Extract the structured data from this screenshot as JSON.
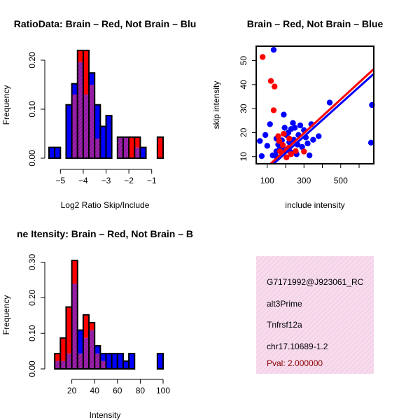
{
  "chart_data": [
    {
      "type": "bar",
      "subtype": "overlaid-histogram",
      "title": "RatioData: Brain – Red, Not Brain – Blu",
      "xlabel": "Log2 Ratio Skip/Include",
      "ylabel": "Frequency",
      "xlim": [
        -5.5,
        -0.5
      ],
      "ylim": [
        0,
        0.22
      ],
      "x_ticks": [
        -5,
        -4,
        -3,
        -2,
        -1
      ],
      "x_tick_labels": [
        "−5",
        "−4",
        "−3",
        "−2",
        "−1"
      ],
      "y_ticks": [
        0.0,
        0.1,
        0.2
      ],
      "y_tick_labels": [
        "0.00",
        "0.10",
        "0.20"
      ],
      "bin_width": 0.25,
      "bin_starts": [
        -5.5,
        -5.25,
        -5.0,
        -4.75,
        -4.5,
        -4.25,
        -4.0,
        -3.75,
        -3.5,
        -3.25,
        -3.0,
        -2.75,
        -2.5,
        -2.25,
        -2.0,
        -1.75,
        -1.5,
        -1.25,
        -1.0,
        -0.75
      ],
      "series": [
        {
          "name": "Brain",
          "color": "#ff0000",
          "values": [
            0,
            0,
            0,
            0,
            0.13,
            0.22,
            0.22,
            0.15,
            0.04,
            0,
            0,
            0,
            0.043,
            0.043,
            0.043,
            0.043,
            0,
            0,
            0,
            0.043
          ]
        },
        {
          "name": "Not Brain",
          "color": "#0000ff",
          "values": [
            0.022,
            0.022,
            0,
            0.109,
            0.152,
            0.196,
            0.13,
            0.174,
            0.109,
            0.065,
            0.087,
            0,
            0.043,
            0.043,
            0,
            0.022,
            0.022,
            0,
            0,
            0
          ]
        }
      ]
    },
    {
      "type": "scatter",
      "title": "Brain – Red, Not Brain – Blue",
      "xlabel": "include intensity",
      "ylabel": "skip intensity",
      "xlim": [
        40,
        680
      ],
      "ylim": [
        7,
        56
      ],
      "x_ticks": [
        100,
        300,
        500
      ],
      "x_tick_labels": [
        "100",
        "300",
        "500"
      ],
      "y_ticks": [
        10,
        20,
        30,
        40,
        50
      ],
      "y_tick_labels": [
        "10",
        "20",
        "30",
        "40",
        "50"
      ],
      "series": [
        {
          "name": "Brain",
          "color": "#ff0000",
          "points": [
            [
              75,
              51.5
            ],
            [
              120,
              41.5
            ],
            [
              140,
              39.2
            ],
            [
              135,
              29.3
            ],
            [
              165,
              16.5
            ],
            [
              185,
              14.8
            ],
            [
              205,
              12.5
            ],
            [
              170,
              12.2
            ],
            [
              215,
              13.6
            ],
            [
              230,
              11
            ],
            [
              205,
              9.7
            ],
            [
              255,
              12.3
            ],
            [
              300,
              12.1
            ],
            [
              190,
              19.5
            ],
            [
              220,
              17.5
            ],
            [
              160,
              18.5
            ]
          ],
          "fit": [
            [
              40,
              1.5
            ],
            [
              680,
              46.5
            ]
          ]
        },
        {
          "name": "Not Brain",
          "color": "#0000ff",
          "points": [
            [
              135,
              54.5
            ],
            [
              60,
              16.5
            ],
            [
              90,
              19
            ],
            [
              70,
              10.2
            ],
            [
              115,
              23.5
            ],
            [
              100,
              14.5
            ],
            [
              130,
              10.5
            ],
            [
              150,
              12.2
            ],
            [
              150,
              17.5
            ],
            [
              160,
              15
            ],
            [
              170,
              13.5
            ],
            [
              175,
              16.2
            ],
            [
              180,
              14.2
            ],
            [
              190,
              27.5
            ],
            [
              195,
              22
            ],
            [
              200,
              12.8
            ],
            [
              205,
              19
            ],
            [
              215,
              20
            ],
            [
              220,
              16
            ],
            [
              225,
              12
            ],
            [
              230,
              21.5
            ],
            [
              240,
              24
            ],
            [
              245,
              17
            ],
            [
              250,
              22
            ],
            [
              260,
              11
            ],
            [
              265,
              15
            ],
            [
              270,
              19
            ],
            [
              280,
              23
            ],
            [
              290,
              14
            ],
            [
              300,
              21
            ],
            [
              310,
              18
            ],
            [
              320,
              15.5
            ],
            [
              330,
              10.5
            ],
            [
              340,
              23.5
            ],
            [
              350,
              17
            ],
            [
              380,
              18.5
            ],
            [
              440,
              32.5
            ],
            [
              670,
              31.5
            ],
            [
              665,
              15.8
            ],
            [
              180,
              16.8
            ],
            [
              150,
              10
            ]
          ],
          "fit": [
            [
              40,
              0.5
            ],
            [
              680,
              44.5
            ]
          ]
        }
      ]
    },
    {
      "type": "bar",
      "subtype": "overlaid-histogram",
      "title": "ne Itensity: Brain – Red, Not Brain – B",
      "xlabel": "Intensity",
      "ylabel": "Frequency",
      "xlim": [
        0,
        100
      ],
      "ylim": [
        0,
        0.305
      ],
      "x_ticks": [
        20,
        40,
        60,
        80,
        100
      ],
      "x_tick_labels": [
        "20",
        "40",
        "60",
        "80",
        "100"
      ],
      "y_ticks": [
        0.0,
        0.1,
        0.2,
        0.3
      ],
      "y_tick_labels": [
        "0.00",
        "0.10",
        "0.20",
        "0.30"
      ],
      "bin_width": 5,
      "bin_starts": [
        5,
        10,
        15,
        20,
        25,
        30,
        35,
        40,
        45,
        50,
        55,
        60,
        65,
        70,
        75,
        80,
        85,
        90,
        95
      ],
      "series": [
        {
          "name": "Brain",
          "color": "#ff0000",
          "values": [
            0.043,
            0.087,
            0.174,
            0.305,
            0.043,
            0.152,
            0.13,
            0.043,
            0.022,
            0,
            0,
            0,
            0,
            0,
            0,
            0,
            0,
            0,
            0
          ]
        },
        {
          "name": "Not Brain",
          "color": "#0000ff",
          "values": [
            0.022,
            0.022,
            0.043,
            0.239,
            0.109,
            0.087,
            0.109,
            0.065,
            0.043,
            0.043,
            0.043,
            0.043,
            0.022,
            0.043,
            0,
            0,
            0,
            0,
            0.043
          ]
        }
      ]
    }
  ],
  "info_panel": {
    "id_line": "G7171992@J923061_RC",
    "event_type": "alt3Prime",
    "gene": "Tnfrsf12a",
    "location": "chr17.10689-1.2",
    "pval": "Pval: 2.000000",
    "bg_color": "#f5d3e6",
    "pval_color": "#8b0000"
  }
}
